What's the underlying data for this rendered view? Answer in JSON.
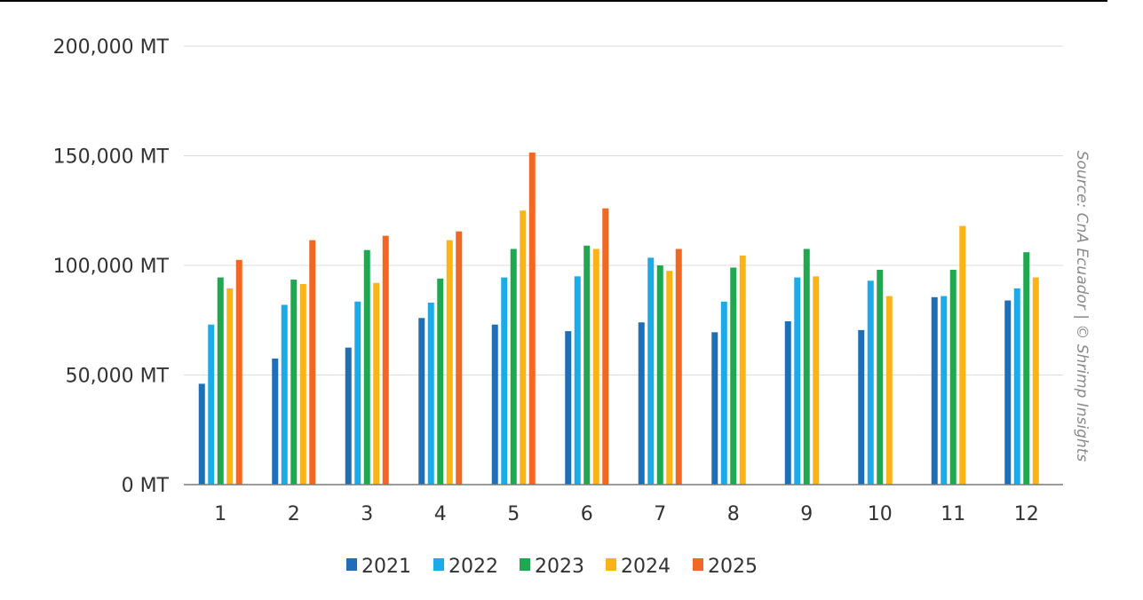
{
  "chart_data": {
    "type": "bar",
    "categories": [
      "1",
      "2",
      "3",
      "4",
      "5",
      "6",
      "7",
      "8",
      "9",
      "10",
      "11",
      "12"
    ],
    "series": [
      {
        "name": "2021",
        "color": "#1f6fb8",
        "values": [
          46000,
          57500,
          62500,
          76000,
          73000,
          70000,
          74000,
          69500,
          74500,
          70500,
          85500,
          84000
        ]
      },
      {
        "name": "2022",
        "color": "#1aabe8",
        "values": [
          73000,
          82000,
          83500,
          83000,
          94500,
          95000,
          103500,
          83500,
          94500,
          93000,
          86000,
          89500
        ]
      },
      {
        "name": "2023",
        "color": "#1fa84f",
        "values": [
          94500,
          93500,
          107000,
          94000,
          107500,
          109000,
          100000,
          99000,
          107500,
          98000,
          98000,
          106000
        ]
      },
      {
        "name": "2024",
        "color": "#fcb316",
        "values": [
          89500,
          91500,
          92000,
          111500,
          125000,
          107500,
          97500,
          104500,
          95000,
          86000,
          118000,
          94500
        ]
      },
      {
        "name": "2025",
        "color": "#f26722",
        "values": [
          102500,
          111500,
          113500,
          115500,
          151500,
          126000,
          107500,
          null,
          null,
          null,
          null,
          null
        ]
      }
    ],
    "y_ticks": [
      "0 MT",
      "50,000 MT",
      "100,000 MT",
      "150,000 MT",
      "200,000 MT"
    ],
    "ylim": [
      0,
      200000
    ],
    "grid": true,
    "legend_position": "bottom-center",
    "source_note": "Source: CnA Ecuador | © Shrimp Insights",
    "title": "",
    "xlabel": "",
    "ylabel": ""
  }
}
